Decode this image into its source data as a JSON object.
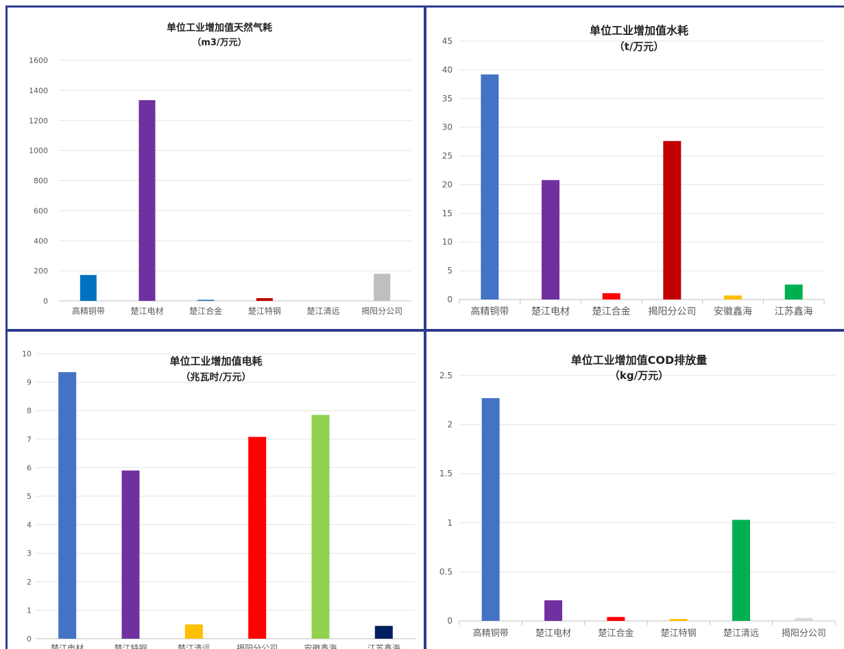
{
  "charts": [
    {
      "type": "bar",
      "title": "单位工业增加值天然气耗",
      "subtitle": "（m3/万元）",
      "categories": [
        "高精铜带",
        "楚江电材",
        "楚江合金",
        "楚江特钢",
        "楚江清远",
        "揭阳分公司"
      ],
      "values": [
        172,
        1335,
        5,
        18,
        0,
        180
      ],
      "colors": [
        "#0070c0",
        "#7030a0",
        "#0070c0",
        "#c00000",
        "#7f7f7f",
        "#bfbfbf"
      ],
      "ylim": [
        0,
        1600
      ],
      "yticks": [
        "0",
        "200",
        "400",
        "600",
        "800",
        "1000",
        "1200",
        "1400",
        "1600"
      ],
      "grid": true
    },
    {
      "type": "bar",
      "title": "单位工业增加值水耗",
      "subtitle": "（t/万元）",
      "categories": [
        "高精铜带",
        "楚江电材",
        "楚江合金",
        "揭阳分公司",
        "安徽鑫海",
        "江苏鑫海"
      ],
      "values": [
        39.2,
        20.8,
        1.1,
        27.6,
        0.7,
        2.6
      ],
      "colors": [
        "#4472c4",
        "#7030a0",
        "#ff0000",
        "#c00000",
        "#ffc000",
        "#00b050"
      ],
      "ylim": [
        0,
        45
      ],
      "yticks": [
        "0",
        "5",
        "10",
        "15",
        "20",
        "25",
        "30",
        "35",
        "40",
        "45"
      ],
      "grid": true
    },
    {
      "type": "bar",
      "title": "单位工业增加值电耗",
      "subtitle": "（兆瓦时/万元）",
      "categories": [
        "楚江电材",
        "楚江特钢",
        "楚江清远",
        "揭阳分公司",
        "安徽鑫海",
        "江苏鑫海"
      ],
      "values": [
        9.35,
        5.9,
        0.5,
        7.08,
        7.85,
        0.45
      ],
      "colors": [
        "#4472c4",
        "#7030a0",
        "#ffc000",
        "#ff0000",
        "#92d050",
        "#002060"
      ],
      "ylim": [
        0,
        10
      ],
      "yticks": [
        "0",
        "1",
        "2",
        "3",
        "4",
        "5",
        "6",
        "7",
        "8",
        "9",
        "10"
      ],
      "grid": true
    },
    {
      "type": "bar",
      "title": "单位工业增加值COD排放量",
      "subtitle": "（kg/万元）",
      "categories": [
        "高精铜带",
        "楚江电材",
        "楚江合金",
        "楚江特钢",
        "楚江清远",
        "揭阳分公司"
      ],
      "values": [
        2.27,
        0.21,
        0.04,
        0.02,
        1.03,
        0.03
      ],
      "colors": [
        "#4472c4",
        "#7030a0",
        "#ff0000",
        "#ffc000",
        "#00b050",
        "#d9d9d9"
      ],
      "ylim": [
        0,
        2.5
      ],
      "yticks": [
        "0",
        "0.5",
        "1",
        "1.5",
        "2",
        "2.5"
      ],
      "grid": true
    }
  ],
  "chart_data": [
    {
      "type": "bar",
      "title": "单位工业增加值天然气耗",
      "ylabel": "（m3/万元）",
      "categories": [
        "高精铜带",
        "楚江电材",
        "楚江合金",
        "楚江特钢",
        "楚江清远",
        "揭阳分公司"
      ],
      "values": [
        172,
        1335,
        5,
        18,
        0,
        180
      ],
      "ylim": [
        0,
        1600
      ]
    },
    {
      "type": "bar",
      "title": "单位工业增加值水耗",
      "ylabel": "（t/万元）",
      "categories": [
        "高精铜带",
        "楚江电材",
        "楚江合金",
        "揭阳分公司",
        "安徽鑫海",
        "江苏鑫海"
      ],
      "values": [
        39.2,
        20.8,
        1.1,
        27.6,
        0.7,
        2.6
      ],
      "ylim": [
        0,
        45
      ]
    },
    {
      "type": "bar",
      "title": "单位工业增加值电耗",
      "ylabel": "（兆瓦时/万元）",
      "categories": [
        "楚江电材",
        "楚江特钢",
        "楚江清远",
        "揭阳分公司",
        "安徽鑫海",
        "江苏鑫海"
      ],
      "values": [
        9.35,
        5.9,
        0.5,
        7.08,
        7.85,
        0.45
      ],
      "ylim": [
        0,
        10
      ]
    },
    {
      "type": "bar",
      "title": "单位工业增加值COD排放量",
      "ylabel": "（kg/万元）",
      "categories": [
        "高精铜带",
        "楚江电材",
        "楚江合金",
        "楚江特钢",
        "楚江清远",
        "揭阳分公司"
      ],
      "values": [
        2.27,
        0.21,
        0.04,
        0.02,
        1.03,
        0.03
      ],
      "ylim": [
        0,
        2.5
      ]
    }
  ]
}
